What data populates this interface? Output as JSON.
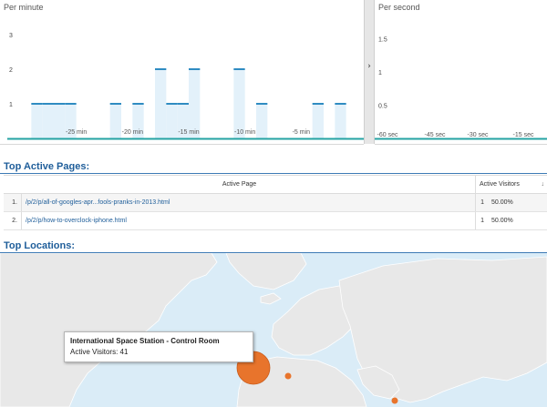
{
  "per_minute": {
    "title": "Per minute",
    "y_ticks": [
      "3",
      "2",
      "1"
    ],
    "x_ticks": [
      "-25 min",
      "-20 min",
      "-15 min",
      "-10 min",
      "-5 min"
    ]
  },
  "per_second": {
    "title": "Per second",
    "y_ticks": [
      "1.5",
      "1",
      "0.5"
    ],
    "x_ticks": [
      "-60 sec",
      "-45 sec",
      "-30 sec",
      "-15 sec"
    ]
  },
  "divider_glyph": "›",
  "chart_data": [
    {
      "type": "bar",
      "title": "Per minute",
      "xlabel": "",
      "ylabel": "",
      "x_tick_labels": [
        "-25 min",
        "-20 min",
        "-15 min",
        "-10 min",
        "-5 min"
      ],
      "ylim": [
        0,
        3
      ],
      "values": [
        0,
        1,
        1,
        1,
        1,
        0,
        0,
        0,
        1,
        0,
        1,
        0,
        2,
        1,
        1,
        2,
        0,
        0,
        0,
        2,
        0,
        1,
        0,
        0,
        0,
        0,
        1,
        0,
        1,
        0
      ]
    },
    {
      "type": "bar",
      "title": "Per second",
      "xlabel": "",
      "ylabel": "",
      "x_tick_labels": [
        "-60 sec",
        "-45 sec",
        "-30 sec",
        "-15 sec"
      ],
      "ylim": [
        0,
        1.5
      ],
      "values": []
    }
  ],
  "top_pages": {
    "title": "Top Active Pages:",
    "columns": [
      "Active Page",
      "Active Visitors"
    ],
    "sort_glyph": "↓",
    "rows": [
      {
        "rank": "1.",
        "page": "/p/2/p/all-of-googles-apr...fools-pranks-in-2013.html",
        "count": "1",
        "pct": "50.00%"
      },
      {
        "rank": "2.",
        "page": "/p/2/p/how-to-overclock-iphone.html",
        "count": "1",
        "pct": "50.00%"
      }
    ]
  },
  "top_locations": {
    "title": "Top Locations:",
    "tooltip_title": "International Space Station - Control Room",
    "tooltip_body": "Active Visitors: 41"
  },
  "colors": {
    "bar_fill": "#e3f1fa",
    "bar_line": "#2f8cc2",
    "baseline": "#24a3a3",
    "section_title": "#1f5e9a",
    "map_water": "#daecf7",
    "map_land": "#e8e8e8",
    "marker": "#e8742c"
  }
}
